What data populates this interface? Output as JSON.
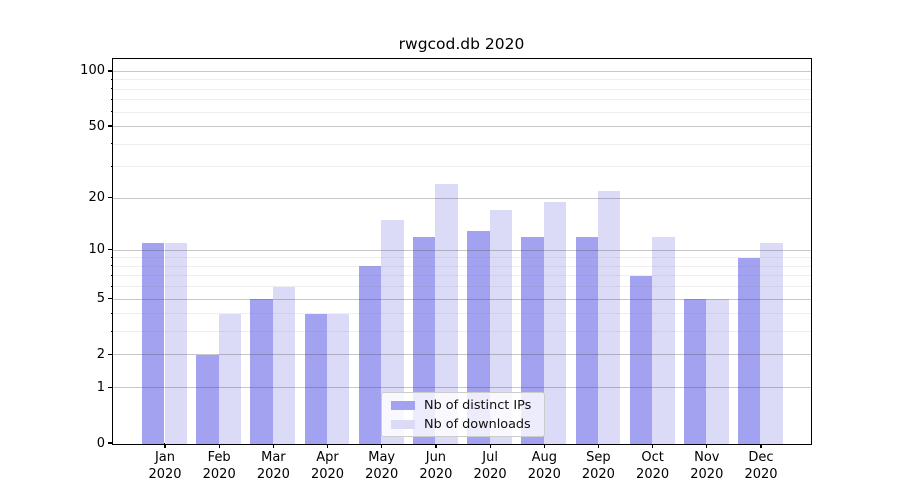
{
  "figure": {
    "title": "rwgcod.db 2020"
  },
  "chart_data": {
    "type": "bar",
    "title": "rwgcod.db 2020",
    "categories": [
      "Jan",
      "Feb",
      "Mar",
      "Apr",
      "May",
      "Jun",
      "Jul",
      "Aug",
      "Sep",
      "Oct",
      "Nov",
      "Dec"
    ],
    "year_label": "2020",
    "series": [
      {
        "name": "Nb of distinct IPs",
        "color": "#a2a2f0",
        "values": [
          11,
          2,
          5,
          4,
          8,
          12,
          13,
          12,
          12,
          7,
          5,
          9
        ]
      },
      {
        "name": "Nb of downloads",
        "color": "#dbdbf8",
        "values": [
          11,
          4,
          6,
          4,
          15,
          24,
          17,
          19,
          22,
          12,
          5,
          11
        ]
      }
    ],
    "yscale": "log1p",
    "ylim": [
      0,
      116
    ],
    "yticks": [
      0,
      1,
      2,
      5,
      10,
      20,
      50,
      100
    ],
    "minor_yticks": [
      3,
      4,
      6,
      7,
      8,
      9,
      30,
      40,
      60,
      70,
      80,
      90
    ],
    "grid": true,
    "legend": {
      "position": "lower center",
      "entries": [
        "Nb of distinct IPs",
        "Nb of downloads"
      ]
    }
  }
}
